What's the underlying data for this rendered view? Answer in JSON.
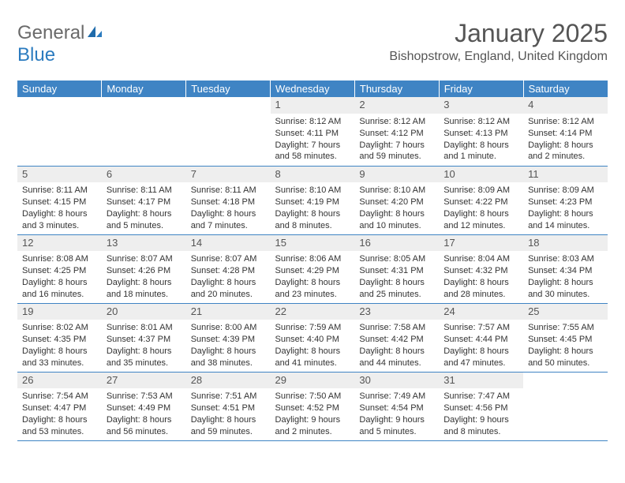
{
  "logo": {
    "word1": "General",
    "word2": "Blue"
  },
  "title": "January 2025",
  "location": "Bishopstrow, England, United Kingdom",
  "colors": {
    "header_bg": "#3f84c4",
    "header_text": "#ffffff",
    "daynum_bg": "#eeeeee",
    "rule": "#3f84c4",
    "logo_blue": "#2b7bbf"
  },
  "day_headers": [
    "Sunday",
    "Monday",
    "Tuesday",
    "Wednesday",
    "Thursday",
    "Friday",
    "Saturday"
  ],
  "weeks": [
    [
      null,
      null,
      null,
      {
        "n": "1",
        "sr": "8:12 AM",
        "ss": "4:11 PM",
        "dl": "7 hours and 58 minutes."
      },
      {
        "n": "2",
        "sr": "8:12 AM",
        "ss": "4:12 PM",
        "dl": "7 hours and 59 minutes."
      },
      {
        "n": "3",
        "sr": "8:12 AM",
        "ss": "4:13 PM",
        "dl": "8 hours and 1 minute."
      },
      {
        "n": "4",
        "sr": "8:12 AM",
        "ss": "4:14 PM",
        "dl": "8 hours and 2 minutes."
      }
    ],
    [
      {
        "n": "5",
        "sr": "8:11 AM",
        "ss": "4:15 PM",
        "dl": "8 hours and 3 minutes."
      },
      {
        "n": "6",
        "sr": "8:11 AM",
        "ss": "4:17 PM",
        "dl": "8 hours and 5 minutes."
      },
      {
        "n": "7",
        "sr": "8:11 AM",
        "ss": "4:18 PM",
        "dl": "8 hours and 7 minutes."
      },
      {
        "n": "8",
        "sr": "8:10 AM",
        "ss": "4:19 PM",
        "dl": "8 hours and 8 minutes."
      },
      {
        "n": "9",
        "sr": "8:10 AM",
        "ss": "4:20 PM",
        "dl": "8 hours and 10 minutes."
      },
      {
        "n": "10",
        "sr": "8:09 AM",
        "ss": "4:22 PM",
        "dl": "8 hours and 12 minutes."
      },
      {
        "n": "11",
        "sr": "8:09 AM",
        "ss": "4:23 PM",
        "dl": "8 hours and 14 minutes."
      }
    ],
    [
      {
        "n": "12",
        "sr": "8:08 AM",
        "ss": "4:25 PM",
        "dl": "8 hours and 16 minutes."
      },
      {
        "n": "13",
        "sr": "8:07 AM",
        "ss": "4:26 PM",
        "dl": "8 hours and 18 minutes."
      },
      {
        "n": "14",
        "sr": "8:07 AM",
        "ss": "4:28 PM",
        "dl": "8 hours and 20 minutes."
      },
      {
        "n": "15",
        "sr": "8:06 AM",
        "ss": "4:29 PM",
        "dl": "8 hours and 23 minutes."
      },
      {
        "n": "16",
        "sr": "8:05 AM",
        "ss": "4:31 PM",
        "dl": "8 hours and 25 minutes."
      },
      {
        "n": "17",
        "sr": "8:04 AM",
        "ss": "4:32 PM",
        "dl": "8 hours and 28 minutes."
      },
      {
        "n": "18",
        "sr": "8:03 AM",
        "ss": "4:34 PM",
        "dl": "8 hours and 30 minutes."
      }
    ],
    [
      {
        "n": "19",
        "sr": "8:02 AM",
        "ss": "4:35 PM",
        "dl": "8 hours and 33 minutes."
      },
      {
        "n": "20",
        "sr": "8:01 AM",
        "ss": "4:37 PM",
        "dl": "8 hours and 35 minutes."
      },
      {
        "n": "21",
        "sr": "8:00 AM",
        "ss": "4:39 PM",
        "dl": "8 hours and 38 minutes."
      },
      {
        "n": "22",
        "sr": "7:59 AM",
        "ss": "4:40 PM",
        "dl": "8 hours and 41 minutes."
      },
      {
        "n": "23",
        "sr": "7:58 AM",
        "ss": "4:42 PM",
        "dl": "8 hours and 44 minutes."
      },
      {
        "n": "24",
        "sr": "7:57 AM",
        "ss": "4:44 PM",
        "dl": "8 hours and 47 minutes."
      },
      {
        "n": "25",
        "sr": "7:55 AM",
        "ss": "4:45 PM",
        "dl": "8 hours and 50 minutes."
      }
    ],
    [
      {
        "n": "26",
        "sr": "7:54 AM",
        "ss": "4:47 PM",
        "dl": "8 hours and 53 minutes."
      },
      {
        "n": "27",
        "sr": "7:53 AM",
        "ss": "4:49 PM",
        "dl": "8 hours and 56 minutes."
      },
      {
        "n": "28",
        "sr": "7:51 AM",
        "ss": "4:51 PM",
        "dl": "8 hours and 59 minutes."
      },
      {
        "n": "29",
        "sr": "7:50 AM",
        "ss": "4:52 PM",
        "dl": "9 hours and 2 minutes."
      },
      {
        "n": "30",
        "sr": "7:49 AM",
        "ss": "4:54 PM",
        "dl": "9 hours and 5 minutes."
      },
      {
        "n": "31",
        "sr": "7:47 AM",
        "ss": "4:56 PM",
        "dl": "9 hours and 8 minutes."
      },
      null
    ]
  ],
  "labels": {
    "sunrise": "Sunrise:",
    "sunset": "Sunset:",
    "daylight": "Daylight:"
  }
}
